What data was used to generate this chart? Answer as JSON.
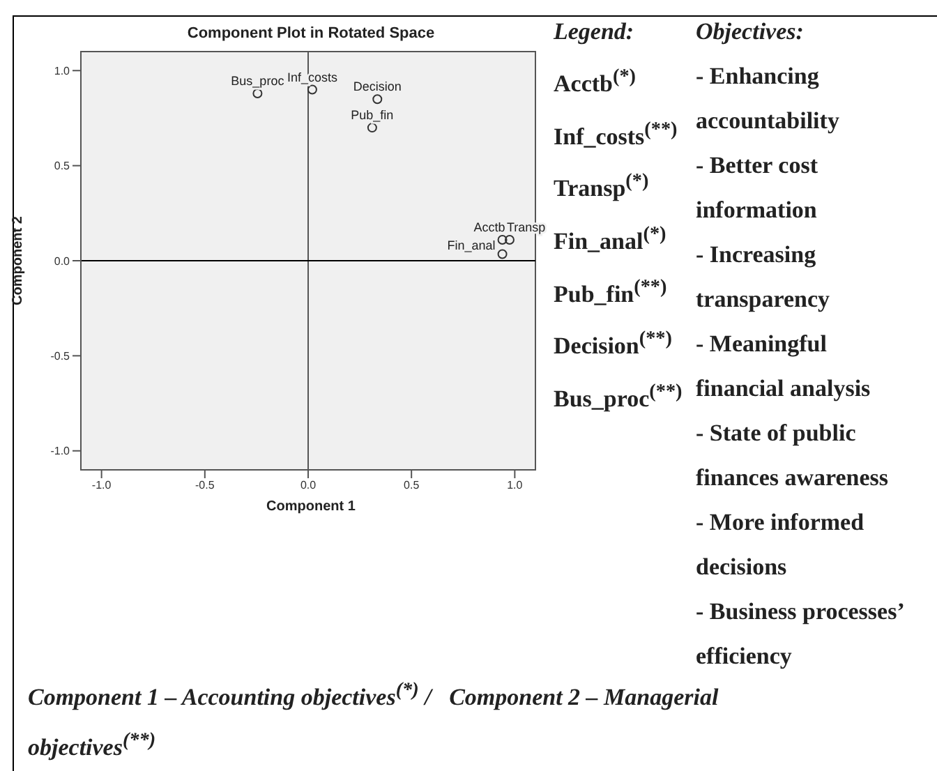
{
  "chart_data": {
    "type": "scatter",
    "title": "Component Plot in Rotated Space",
    "xlabel": "Component 1",
    "ylabel": "Component 2",
    "xlim": [
      -1.1,
      1.1
    ],
    "ylim": [
      -1.1,
      1.1
    ],
    "xticks": [
      {
        "value": -1,
        "label": "-1.0"
      },
      {
        "value": -0.5,
        "label": "-0.5"
      },
      {
        "value": 0,
        "label": "0.0"
      },
      {
        "value": 0.5,
        "label": "0.5"
      },
      {
        "value": 1,
        "label": "1.0"
      }
    ],
    "yticks": [
      {
        "value": -1,
        "label": "-1.0"
      },
      {
        "value": -0.5,
        "label": "-0.5"
      },
      {
        "value": 0,
        "label": "0.0"
      },
      {
        "value": 0.5,
        "label": "0.5"
      },
      {
        "value": 1,
        "label": "1.0"
      }
    ],
    "marker": "circle",
    "legend": false,
    "ref_lines": [
      {
        "axis": "x",
        "value": 0,
        "color": "#555555"
      },
      {
        "axis": "y",
        "value": 0,
        "color": "#000000"
      }
    ],
    "series": [
      {
        "name": "Acctb",
        "color": "#333333",
        "x": [
          0.94
        ],
        "values": [
          0.11
        ]
      },
      {
        "name": "Inf_costs",
        "color": "#333333",
        "x": [
          0.02
        ],
        "values": [
          0.9
        ]
      },
      {
        "name": "Transp",
        "color": "#333333",
        "x": [
          0.975
        ],
        "values": [
          0.11
        ]
      },
      {
        "name": "Fin_anal",
        "color": "#333333",
        "x": [
          0.94
        ],
        "values": [
          0.035
        ]
      },
      {
        "name": "Pub_fin",
        "color": "#333333",
        "x": [
          0.31
        ],
        "values": [
          0.7
        ]
      },
      {
        "name": "Decision",
        "color": "#333333",
        "x": [
          0.335
        ],
        "values": [
          0.85
        ]
      },
      {
        "name": "Bus_proc",
        "color": "#333333",
        "x": [
          -0.245
        ],
        "values": [
          0.88
        ]
      }
    ],
    "annotations": [
      "Legend:",
      "Objectives:",
      "Acctb$^{(*)}$",
      "Inf_costs$^{(**)}$",
      "Transp$^{(*)}$",
      "Fin_anal$^{(*)}$",
      "Pub_fin$^{(**)}$",
      "Decision$^{(**)}$",
      "Bus_proc$^{(**)}$",
      "- Enhancing accountability",
      "- Better cost information",
      "- Increasing transparency",
      "- Meaningful financial analysis",
      "- State of public finances awareness",
      "- More informed decisions",
      "- Business processes’ efficiency",
      "Component 1 – Accounting objectives$^{(*)}$ /   Component 2 – Managerial objectives$^{(**)}$"
    ]
  }
}
